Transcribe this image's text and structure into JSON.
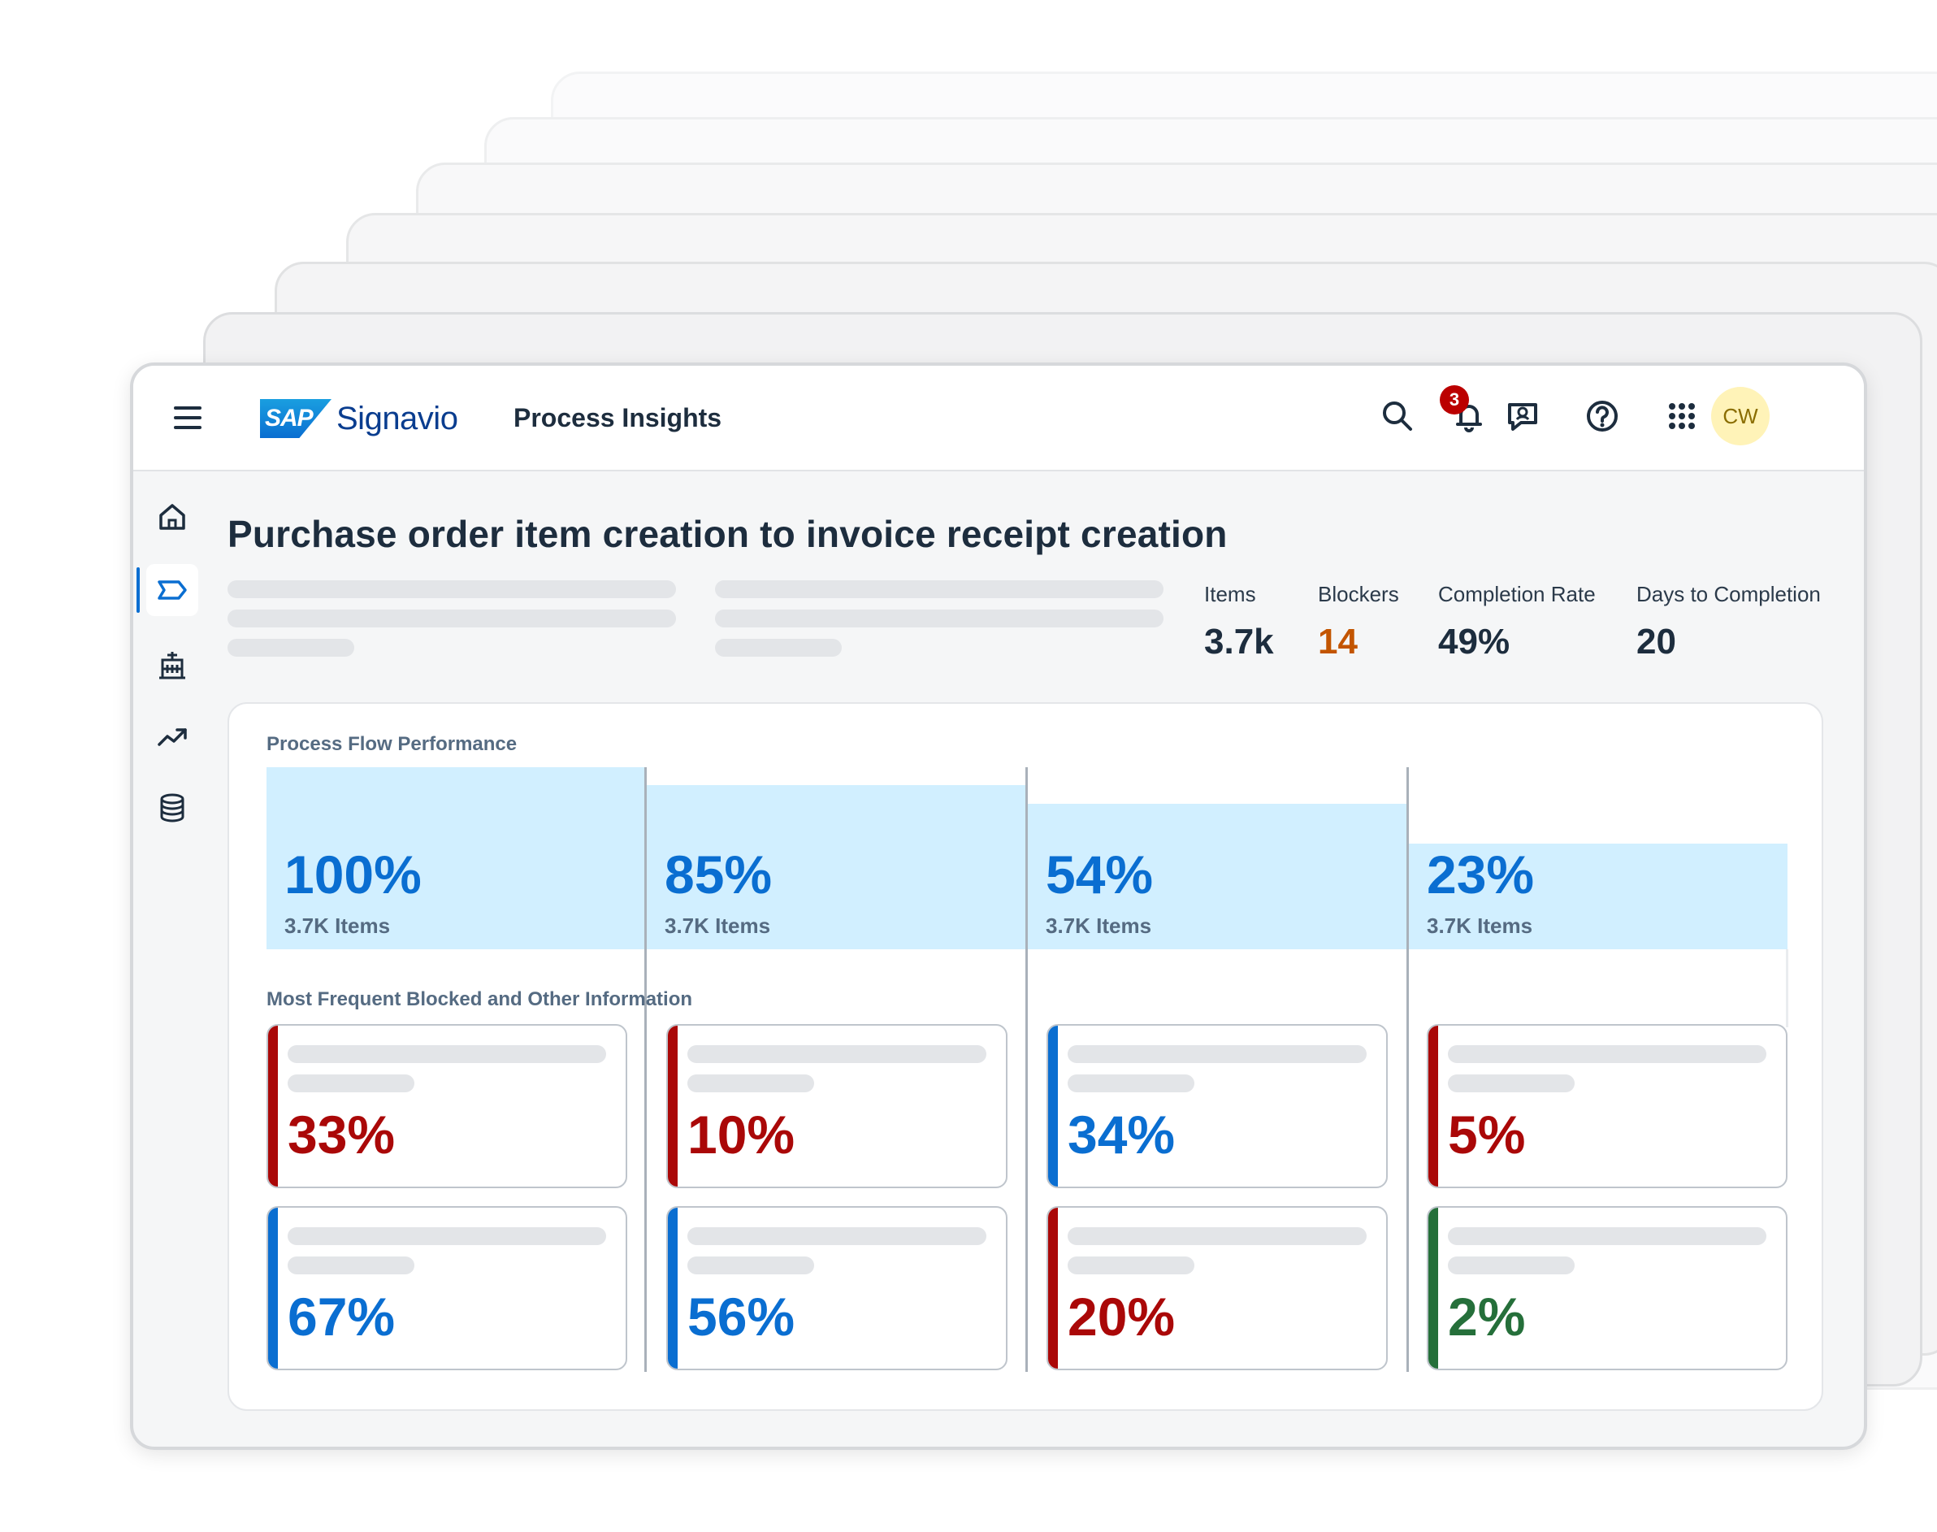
{
  "shell": {
    "brand_sap": "SAP",
    "brand_name": "Signavio",
    "product": "Process Insights",
    "notification_count": "3",
    "avatar_initials": "CW",
    "icons": [
      "menu-icon",
      "search-icon",
      "bell-icon",
      "feedback-icon",
      "help-icon",
      "app-grid-icon"
    ]
  },
  "sidenav": {
    "items": [
      {
        "name": "home",
        "icon": "home-icon"
      },
      {
        "name": "process",
        "icon": "process-tag-icon",
        "active": true
      },
      {
        "name": "organization",
        "icon": "buildings-icon"
      },
      {
        "name": "trend",
        "icon": "trend-up-icon"
      },
      {
        "name": "data",
        "icon": "database-icon"
      }
    ]
  },
  "page": {
    "title": "Purchase order item creation to invoice receipt creation"
  },
  "kpis": [
    {
      "label": "Items",
      "value": "3.7k"
    },
    {
      "label": "Blockers",
      "value": "14",
      "color": "#c35500"
    },
    {
      "label": "Completion Rate",
      "value": "49%"
    },
    {
      "label": "Days to Completion",
      "value": "20"
    }
  ],
  "flow": {
    "title": "Process Flow Performance",
    "steps": [
      {
        "percent": "100%",
        "items": "3.7K Items",
        "fill": 1.0
      },
      {
        "percent": "85%",
        "items": "3.7K Items",
        "fill": 0.9
      },
      {
        "percent": "54%",
        "items": "3.7K Items",
        "fill": 0.8
      },
      {
        "percent": "23%",
        "items": "3.7K Items",
        "fill": 0.58
      }
    ]
  },
  "blocked": {
    "title": "Most Frequent Blocked and Other Information",
    "rows": [
      [
        {
          "value": "33%",
          "status": "red"
        },
        {
          "value": "10%",
          "status": "red"
        },
        {
          "value": "34%",
          "status": "blue"
        },
        {
          "value": "5%",
          "status": "red"
        }
      ],
      [
        {
          "value": "67%",
          "status": "blue"
        },
        {
          "value": "56%",
          "status": "blue"
        },
        {
          "value": "20%",
          "status": "red"
        },
        {
          "value": "2%",
          "status": "green"
        }
      ]
    ]
  },
  "colors": {
    "accent": "#0a6ed1",
    "critical": "#aa0808",
    "positive": "#256f3a",
    "warning": "#c35500",
    "flow_fill": "#d1efff"
  }
}
